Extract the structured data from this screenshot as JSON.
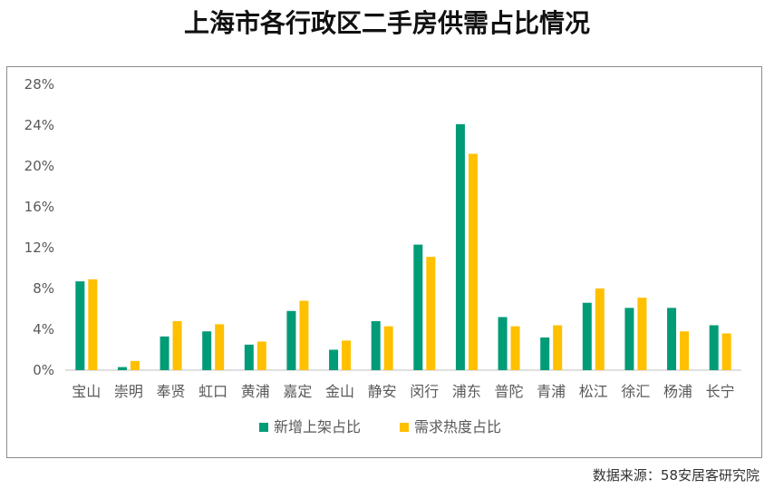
{
  "title": "上海市各行政区二手房供需占比情况",
  "source": "数据来源：58安居客研究院",
  "colors": {
    "series_a": "#009B77",
    "series_b": "#FFC000",
    "axis": "#bfbfbf",
    "tick_text": "#595959"
  },
  "chart_data": {
    "type": "bar",
    "title": "上海市各行政区二手房供需占比情况",
    "categories": [
      "宝山",
      "崇明",
      "奉贤",
      "虹口",
      "黄浦",
      "嘉定",
      "金山",
      "静安",
      "闵行",
      "浦东",
      "普陀",
      "青浦",
      "松江",
      "徐汇",
      "杨浦",
      "长宁"
    ],
    "series": [
      {
        "name": "新增上架占比",
        "values": [
          8.7,
          0.3,
          3.3,
          3.8,
          2.5,
          5.8,
          2.0,
          4.8,
          12.3,
          24.1,
          5.2,
          3.2,
          6.6,
          6.1,
          6.1,
          4.4
        ]
      },
      {
        "name": "需求热度占比",
        "values": [
          8.9,
          0.9,
          4.8,
          4.5,
          2.8,
          6.8,
          2.9,
          4.3,
          11.1,
          21.2,
          4.3,
          4.4,
          8.0,
          7.1,
          3.8,
          3.6
        ]
      }
    ],
    "ylim": [
      0,
      28
    ],
    "yticks": [
      "0%",
      "4%",
      "8%",
      "12%",
      "16%",
      "20%",
      "24%",
      "28%"
    ],
    "ytick_values": [
      0,
      4,
      8,
      12,
      16,
      20,
      24,
      28
    ],
    "grid": false,
    "legend": "bottom"
  }
}
